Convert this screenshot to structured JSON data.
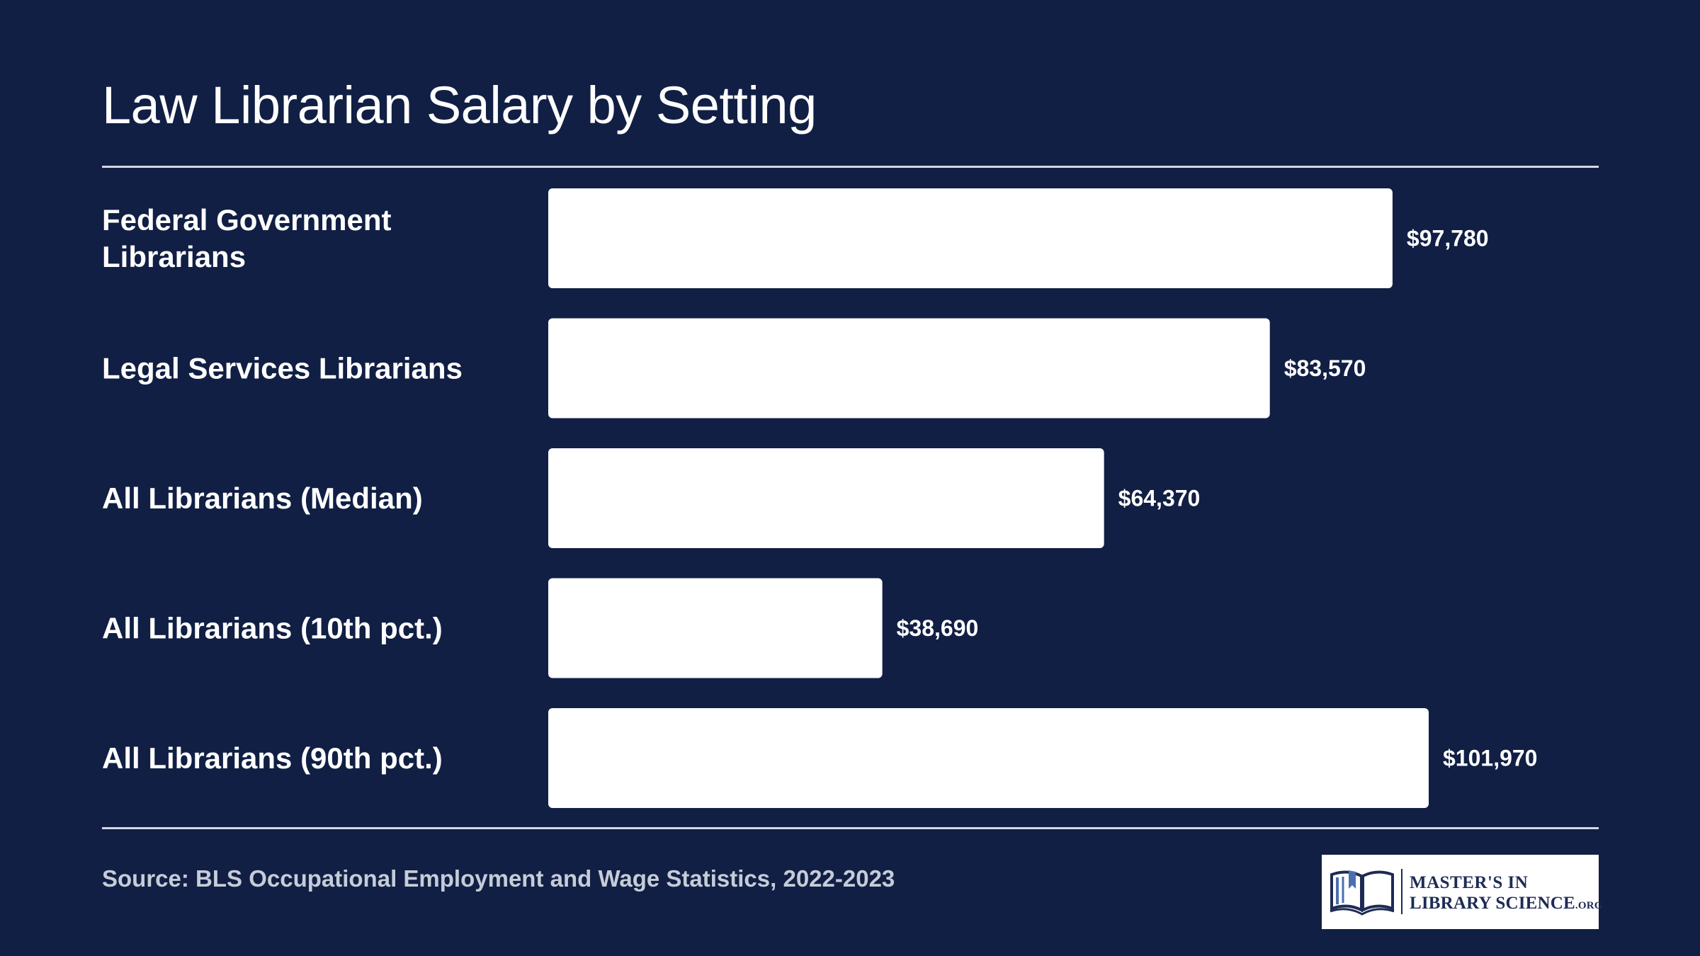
{
  "chart_data": {
    "type": "bar",
    "orientation": "horizontal",
    "title": "Law Librarian Salary by Setting",
    "categories": [
      "Federal Government Librarians",
      "Legal Services Librarians",
      "All Librarians (Median)",
      "All Librarians (10th pct.)",
      "All Librarians (90th pct.)"
    ],
    "category_lines": [
      [
        "Federal Government",
        "Librarians"
      ],
      [
        "Legal Services Librarians"
      ],
      [
        "All Librarians (Median)"
      ],
      [
        "All Librarians (10th pct.)"
      ],
      [
        "All Librarians (90th pct.)"
      ]
    ],
    "values": [
      97780,
      83570,
      64370,
      38690,
      101970
    ],
    "value_labels": [
      "$97,780",
      "$83,570",
      "$64,370",
      "$38,690",
      "$101,970"
    ],
    "xlim": [
      0,
      101970
    ],
    "grid": false,
    "legend": "none",
    "bar_color": "#ffffff",
    "background_color": "#111f44"
  },
  "source": "Source: BLS Occupational Employment and Wage Statistics, 2022-2023",
  "logo": {
    "line1": "MASTER'S IN",
    "line2": "LIBRARY SCIENCE",
    "line2_suffix": ".ORG",
    "icon": "open-book-icon"
  }
}
